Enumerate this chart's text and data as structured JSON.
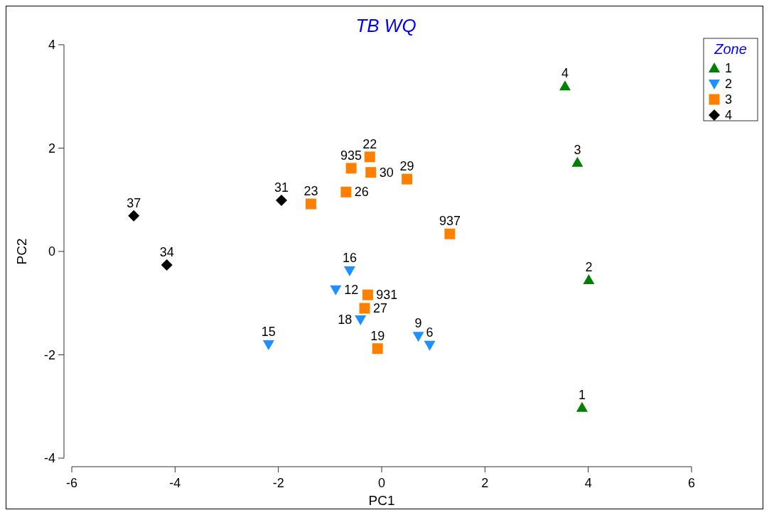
{
  "chart_data": {
    "type": "scatter",
    "title": "TB WQ",
    "xlabel": "PC1",
    "ylabel": "PC2",
    "legend_title": "Zone",
    "legend": "top right",
    "grid": false,
    "xlim": [
      -6,
      6
    ],
    "xticks": [
      -6,
      -4,
      -2,
      0,
      2,
      4,
      6
    ],
    "ylim": [
      -4,
      4
    ],
    "yticks": [
      -4,
      -2,
      0,
      2,
      4
    ],
    "series": [
      {
        "name": "1",
        "color": "#008000",
        "marker": "triangle",
        "x": [
          3.55,
          3.79,
          4.01,
          3.88
        ],
        "values": [
          3.2,
          1.72,
          -0.55,
          -3.02
        ]
      },
      {
        "name": "2",
        "color": "#1e90ff",
        "marker": "triangle-down",
        "x": [
          -0.62,
          -0.89,
          -0.41,
          -2.19,
          0.71,
          0.93
        ],
        "values": [
          -0.37,
          -0.74,
          -1.32,
          -1.8,
          -1.64,
          -1.81
        ]
      },
      {
        "name": "3",
        "color": "#ff8000",
        "marker": "square",
        "x": [
          -0.23,
          -0.59,
          -0.21,
          -0.69,
          -1.37,
          0.49,
          1.32,
          -0.27,
          -0.33,
          -0.08
        ],
        "values": [
          1.83,
          1.61,
          1.53,
          1.15,
          0.92,
          1.4,
          0.34,
          -0.84,
          -1.1,
          -1.88
        ]
      },
      {
        "name": "4",
        "color": "#000000",
        "marker": "diamond",
        "x": [
          -1.94,
          -4.8,
          -4.16
        ],
        "values": [
          0.99,
          0.69,
          -0.26
        ]
      }
    ],
    "annotations": [
      {
        "text": "4",
        "x": 3.55,
        "y": 3.2
      },
      {
        "text": "3",
        "x": 3.79,
        "y": 1.72
      },
      {
        "text": "2",
        "x": 4.01,
        "y": -0.55
      },
      {
        "text": "1",
        "x": 3.88,
        "y": -3.02
      },
      {
        "text": "16",
        "x": -0.62,
        "y": -0.37
      },
      {
        "text": "12",
        "x": -0.89,
        "y": -0.74
      },
      {
        "text": "18",
        "x": -0.41,
        "y": -1.32
      },
      {
        "text": "15",
        "x": -2.19,
        "y": -1.8
      },
      {
        "text": "9",
        "x": 0.71,
        "y": -1.64
      },
      {
        "text": "6",
        "x": 0.93,
        "y": -1.81
      },
      {
        "text": "22",
        "x": -0.23,
        "y": 1.83
      },
      {
        "text": "935",
        "x": -0.59,
        "y": 1.61
      },
      {
        "text": "30",
        "x": -0.21,
        "y": 1.53
      },
      {
        "text": "26",
        "x": -0.69,
        "y": 1.15
      },
      {
        "text": "23",
        "x": -1.37,
        "y": 0.92
      },
      {
        "text": "29",
        "x": 0.49,
        "y": 1.4
      },
      {
        "text": "937",
        "x": 1.32,
        "y": 0.34
      },
      {
        "text": "931",
        "x": -0.27,
        "y": -0.84
      },
      {
        "text": "27",
        "x": -0.33,
        "y": -1.1
      },
      {
        "text": "19",
        "x": -0.08,
        "y": -1.88
      },
      {
        "text": "31",
        "x": -1.94,
        "y": 0.99
      },
      {
        "text": "37",
        "x": -4.8,
        "y": 0.69
      },
      {
        "text": "34",
        "x": -4.16,
        "y": -0.26
      }
    ]
  }
}
